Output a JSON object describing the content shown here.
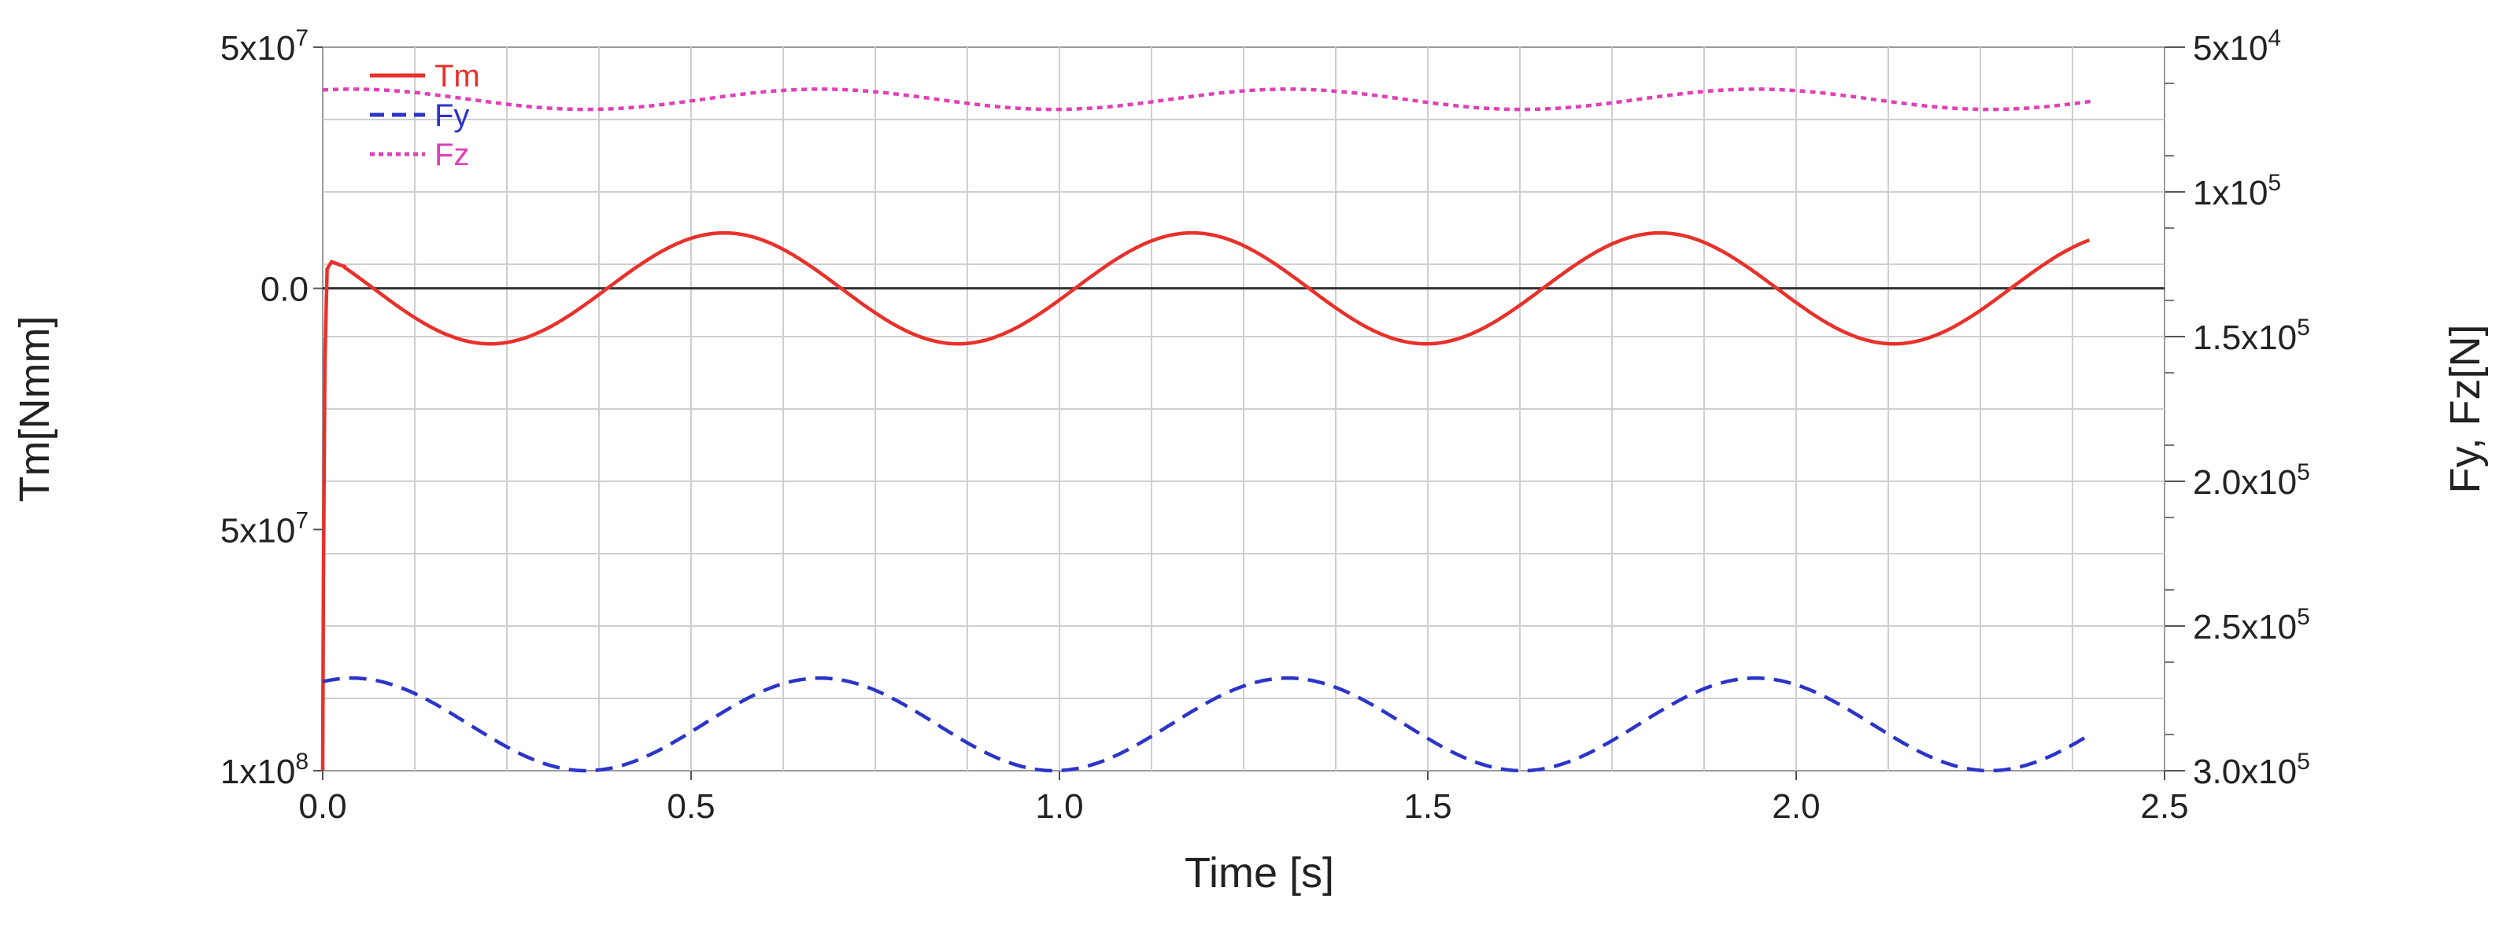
{
  "chart_data": {
    "type": "line",
    "title": "",
    "xlabel": "Time [s]",
    "ylabel_left": "Tm[Nmm]",
    "ylabel_right": "Fy, Fz[N]",
    "xlim": [
      0,
      2.5
    ],
    "ylim_left": [
      -100000000,
      50000000
    ],
    "ylim_right": [
      -300000,
      -50000
    ],
    "grid": true,
    "legend_position": "top-left",
    "x_ticks": [
      {
        "value": 0.0,
        "label": "0.0"
      },
      {
        "value": 0.5,
        "label": "0.5"
      },
      {
        "value": 1.0,
        "label": "1.0"
      },
      {
        "value": 1.5,
        "label": "1.5"
      },
      {
        "value": 2.0,
        "label": "2.0"
      },
      {
        "value": 2.5,
        "label": "2.5"
      }
    ],
    "left_ticks": [
      {
        "value": 50000000,
        "base": "5x10",
        "exp": "7"
      },
      {
        "value": 0,
        "base": "0.0",
        "exp": ""
      },
      {
        "value": -50000000,
        "base": "5x10",
        "exp": "7"
      },
      {
        "value": -100000000,
        "base": "1x10",
        "exp": "8"
      }
    ],
    "right_ticks": [
      {
        "value": -50000,
        "base": "5x10",
        "exp": "4"
      },
      {
        "value": -100000,
        "base": "1x10",
        "exp": "5"
      },
      {
        "value": -150000,
        "base": "1.5x10",
        "exp": "5"
      },
      {
        "value": -200000,
        "base": "2.0x10",
        "exp": "5"
      },
      {
        "value": -250000,
        "base": "2.5x10",
        "exp": "5"
      },
      {
        "value": -300000,
        "base": "3.0x10",
        "exp": "5"
      }
    ],
    "series": [
      {
        "name": "Tm",
        "axis": "left",
        "color": "#e8312a",
        "style": "solid",
        "points": [
          [
            0.0,
            -100000000
          ],
          [
            0.001,
            -60000000
          ],
          [
            0.003,
            -15000000
          ],
          [
            0.006,
            4000000
          ],
          [
            0.012,
            5500000
          ],
          [
            0.03,
            4500000
          ]
        ],
        "oscillation": {
          "start": 0.03,
          "end": 2.4,
          "offset": 0,
          "amplitude": 11500000,
          "period": 0.635,
          "peak_time": 0.545
        }
      },
      {
        "name": "Fy",
        "axis": "right",
        "color": "#2b35c8",
        "style": "dashed",
        "oscillation": {
          "start": 0.0,
          "end": 2.4,
          "offset": -284000,
          "amplitude": 16000,
          "period": 0.635,
          "peak_time": 0.04
        }
      },
      {
        "name": "Fz",
        "axis": "right",
        "color": "#e040b8",
        "style": "dotted",
        "oscillation": {
          "start": 0.0,
          "end": 2.4,
          "offset": -68000,
          "amplitude": 3500,
          "period": 0.635,
          "peak_time": 0.04
        }
      }
    ]
  }
}
